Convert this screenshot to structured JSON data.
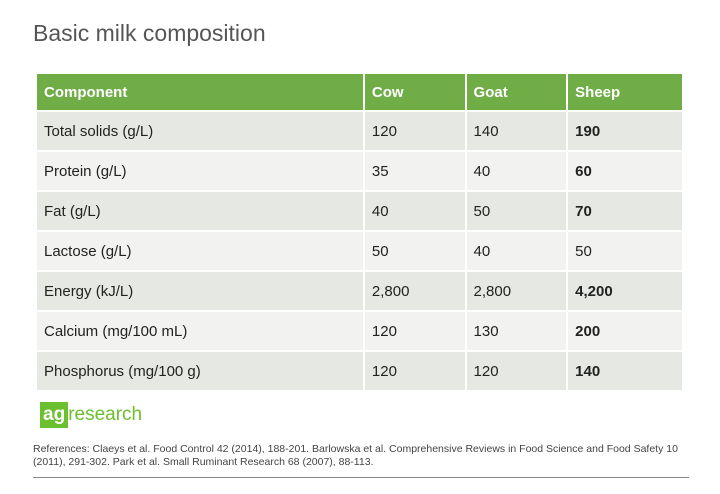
{
  "title": "Basic milk composition",
  "table": {
    "headers": [
      "Component",
      "Cow",
      "Goat",
      "Sheep"
    ],
    "rows": [
      {
        "cells": [
          "Total solids (g/L)",
          "120",
          "140",
          "190"
        ],
        "sheep_bold": true
      },
      {
        "cells": [
          "Protein (g/L)",
          "35",
          "40",
          "60"
        ],
        "sheep_bold": true
      },
      {
        "cells": [
          "Fat (g/L)",
          "40",
          "50",
          "70"
        ],
        "sheep_bold": true
      },
      {
        "cells": [
          "Lactose (g/L)",
          "50",
          "40",
          "50"
        ],
        "sheep_bold": false
      },
      {
        "cells": [
          "Energy (kJ/L)",
          "2,800",
          "2,800",
          "4,200"
        ],
        "sheep_bold": true
      },
      {
        "cells": [
          "Calcium (mg/100 mL)",
          "120",
          "130",
          "200"
        ],
        "sheep_bold": true
      },
      {
        "cells": [
          "Phosphorus (mg/100 g)",
          "120",
          "120",
          "140"
        ],
        "sheep_bold": true
      }
    ]
  },
  "logo": {
    "part1": "ag",
    "part2": "research"
  },
  "references": "References: Claeys et al. Food Control 42 (2014), 188-201. Barlowska et al. Comprehensive Reviews in Food Science and Food Safety 10 (2011), 291-302. Park et al. Small Ruminant Research 68 (2007), 88-113.",
  "colors": {
    "header": "#70ad47",
    "logo": "#6cbf2e"
  }
}
